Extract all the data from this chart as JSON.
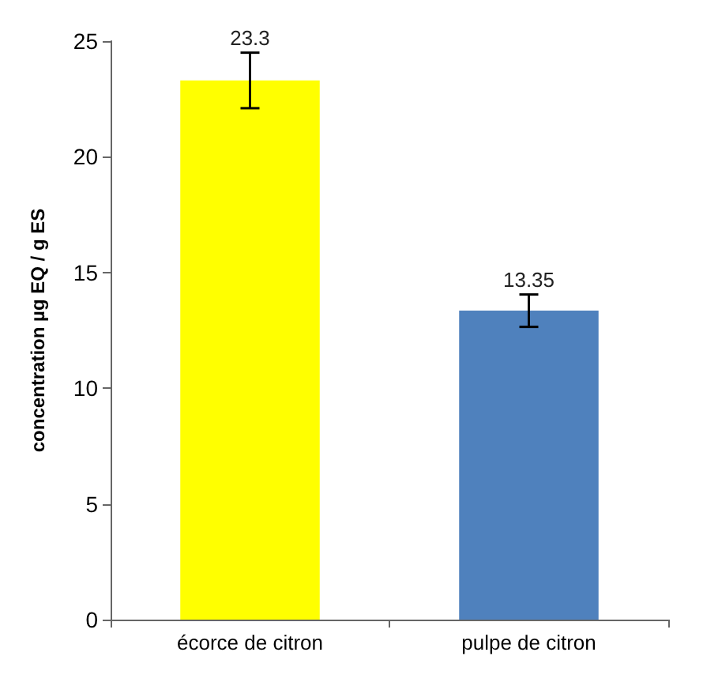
{
  "chart_data": {
    "type": "bar",
    "categories": [
      "écorce de citron",
      "pulpe de citron"
    ],
    "values": [
      23.3,
      13.35
    ],
    "colors": [
      "#ffff00",
      "#4f81bd"
    ],
    "errors": [
      1.2,
      0.7
    ],
    "ylabel": "concentration µg EQ / g ES",
    "ylim": [
      0,
      25
    ],
    "yticks": [
      0,
      5,
      10,
      15,
      20,
      25
    ],
    "data_labels": true,
    "grid": false
  }
}
